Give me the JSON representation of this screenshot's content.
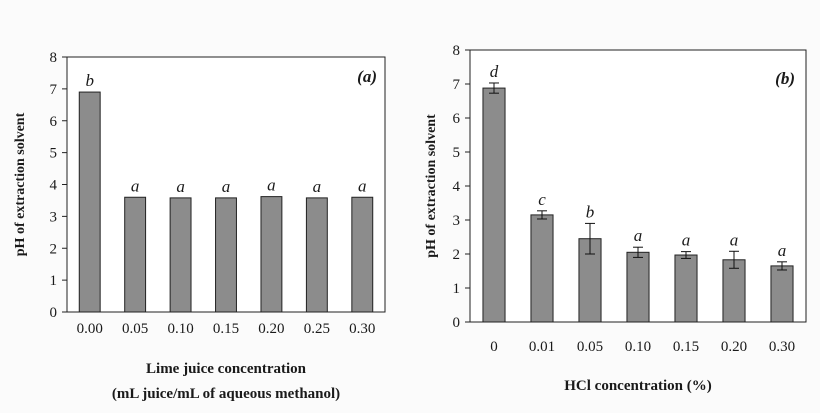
{
  "chart_data": [
    {
      "type": "bar",
      "panel_label": "(a)",
      "xlabel_lines": [
        "Lime juice concentration",
        "(mL juice/mL of aqueous methanol)"
      ],
      "ylabel": "pH of extraction solvent",
      "ylim": [
        0,
        8
      ],
      "yticks": [
        "0",
        "1",
        "2",
        "3",
        "4",
        "5",
        "6",
        "7",
        "8"
      ],
      "categories": [
        "0.00",
        "0.05",
        "0.10",
        "0.15",
        "0.20",
        "0.25",
        "0.30"
      ],
      "values": [
        6.9,
        3.6,
        3.58,
        3.58,
        3.62,
        3.58,
        3.6
      ],
      "errors": [
        0,
        0,
        0,
        0,
        0,
        0,
        0
      ],
      "letters": [
        "b",
        "a",
        "a",
        "a",
        "a",
        "a",
        "a"
      ],
      "bar_color": "#8c8c8c",
      "grid": false
    },
    {
      "type": "bar",
      "panel_label": "(b)",
      "xlabel_lines": [
        "HCl concentration (%)"
      ],
      "ylabel": "pH of extraction solvent",
      "ylim": [
        0,
        8
      ],
      "yticks": [
        "0",
        "1",
        "2",
        "3",
        "4",
        "5",
        "6",
        "7",
        "8"
      ],
      "categories": [
        "0",
        "0.01",
        "0.05",
        "0.10",
        "0.15",
        "0.20",
        "0.30"
      ],
      "values": [
        6.88,
        3.15,
        2.45,
        2.05,
        1.97,
        1.83,
        1.65
      ],
      "errors": [
        0.15,
        0.12,
        0.45,
        0.15,
        0.1,
        0.25,
        0.12
      ],
      "letters": [
        "d",
        "c",
        "b",
        "a",
        "a",
        "a",
        "a"
      ],
      "bar_color": "#8c8c8c",
      "grid": false
    }
  ]
}
